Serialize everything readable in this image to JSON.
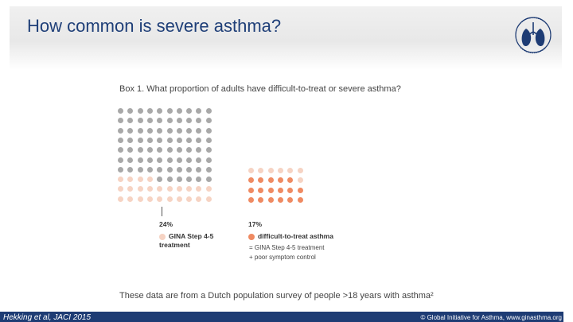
{
  "slide": {
    "title": "How common is severe asthma?",
    "caption": "These data are from a Dutch population survey of people >18 years with asthma²",
    "footer_left": "Hekking et al, JACI 2015",
    "footer_right": "© Global Initiative for Asthma, www.ginasthma.org"
  },
  "logo": {
    "name": "Global Initiative for Asthma logo",
    "icon": "lungs-icon",
    "color": "#1e3c74"
  },
  "figure": {
    "box_title": "Box 1. What proportion of adults have difficult-to-treat or severe asthma?",
    "left_group": {
      "percent_label": "24%",
      "legend_line1": "GINA Step 4-5",
      "legend_line2": "treatment",
      "rows": 10,
      "cols": 10,
      "highlighted_count": 24,
      "base_color": "#a8a8a8",
      "highlight_color": "#f6d3c3"
    },
    "right_group": {
      "percent_label": "17%",
      "legend_label": "difficult-to-treat asthma",
      "detail_line1": "= GINA Step 4-5 treatment",
      "detail_line2": "+ poor symptom control",
      "rows": 4,
      "cols": 6,
      "highlighted_count": 17,
      "base_color": "#f6d3c3",
      "highlight_color": "#ef8a62"
    }
  }
}
